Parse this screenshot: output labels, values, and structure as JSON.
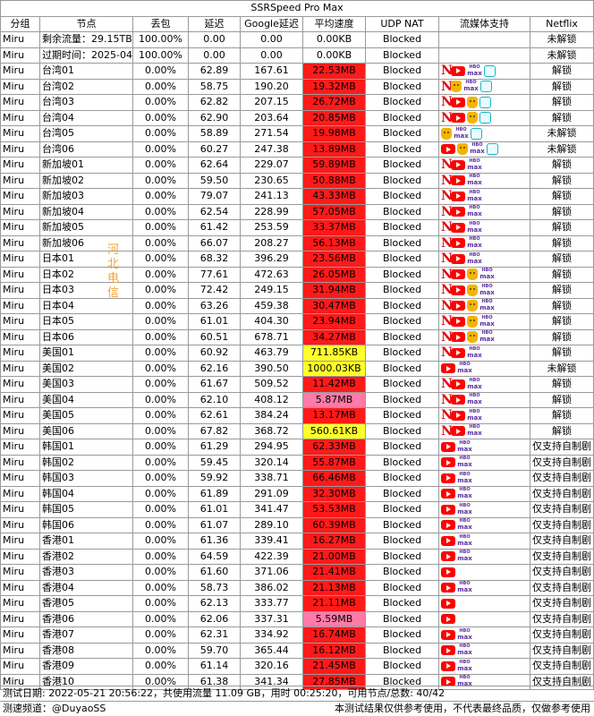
{
  "title": "SSRSpeed Pro Max",
  "watermark": "河北电信",
  "colors": {
    "red": "#ff1a1a",
    "yellow": "#ffff2a",
    "pink": "#ff7aa8"
  },
  "headers": [
    "分组",
    "节点",
    "丢包",
    "延迟",
    "Google延迟",
    "平均速度",
    "UDP NAT",
    "流媒体支持",
    "Netflix"
  ],
  "info_rows": [
    {
      "group": "Miru",
      "node": "剩余流量：29.15TB",
      "loss": "100.00%",
      "ping": "0.00",
      "google": "0.00",
      "speed": "0.00KB",
      "udp": "Blocked",
      "media": [],
      "netflix": "未解锁"
    },
    {
      "group": "Miru",
      "node": "过期时间：2025-04-07",
      "loss": "100.00%",
      "ping": "0.00",
      "google": "0.00",
      "speed": "0.00KB",
      "udp": "Blocked",
      "media": [],
      "netflix": "未解锁"
    }
  ],
  "rows": [
    {
      "group": "Miru",
      "node": "台湾01",
      "loss": "0.00%",
      "ping": "62.89",
      "google": "167.61",
      "speed": "22.53MB",
      "level": "red",
      "udp": "Blocked",
      "media": [
        "netflix-icon",
        "youtube-icon",
        "hbo-max-icon",
        "bilibili-tv-icon"
      ],
      "netflix": "解锁"
    },
    {
      "group": "Miru",
      "node": "台湾02",
      "loss": "0.00%",
      "ping": "58.75",
      "google": "190.20",
      "speed": "19.32MB",
      "level": "red",
      "udp": "Blocked",
      "media": [
        "netflix-icon",
        "bahamut-icon",
        "hbo-max-icon",
        "bilibili-tv-icon"
      ],
      "netflix": "解锁"
    },
    {
      "group": "Miru",
      "node": "台湾03",
      "loss": "0.00%",
      "ping": "62.82",
      "google": "207.15",
      "speed": "26.72MB",
      "level": "red",
      "udp": "Blocked",
      "media": [
        "netflix-icon",
        "youtube-icon",
        "bahamut-icon",
        "bilibili-tv-icon"
      ],
      "netflix": "解锁"
    },
    {
      "group": "Miru",
      "node": "台湾04",
      "loss": "0.00%",
      "ping": "62.90",
      "google": "203.64",
      "speed": "20.85MB",
      "level": "red",
      "udp": "Blocked",
      "media": [
        "netflix-icon",
        "youtube-icon",
        "bahamut-icon",
        "bilibili-tv-icon"
      ],
      "netflix": "解锁"
    },
    {
      "group": "Miru",
      "node": "台湾05",
      "loss": "0.00%",
      "ping": "58.89",
      "google": "271.54",
      "speed": "19.98MB",
      "level": "red",
      "udp": "Blocked",
      "media": [
        "bahamut-icon",
        "hbo-max-icon",
        "bilibili-tv-icon"
      ],
      "netflix": "未解锁"
    },
    {
      "group": "Miru",
      "node": "台湾06",
      "loss": "0.00%",
      "ping": "60.27",
      "google": "247.38",
      "speed": "13.89MB",
      "level": "red",
      "udp": "Blocked",
      "media": [
        "youtube-icon",
        "bahamut-icon",
        "hbo-max-icon",
        "bilibili-tv-icon"
      ],
      "netflix": "未解锁"
    },
    {
      "group": "Miru",
      "node": "新加坡01",
      "loss": "0.00%",
      "ping": "62.64",
      "google": "229.07",
      "speed": "59.89MB",
      "level": "red",
      "udp": "Blocked",
      "media": [
        "netflix-icon",
        "youtube-icon",
        "hbo-max-icon"
      ],
      "netflix": "解锁"
    },
    {
      "group": "Miru",
      "node": "新加坡02",
      "loss": "0.00%",
      "ping": "59.50",
      "google": "230.65",
      "speed": "50.88MB",
      "level": "red",
      "udp": "Blocked",
      "media": [
        "netflix-icon",
        "youtube-icon",
        "hbo-max-icon"
      ],
      "netflix": "解锁"
    },
    {
      "group": "Miru",
      "node": "新加坡03",
      "loss": "0.00%",
      "ping": "79.07",
      "google": "241.13",
      "speed": "43.33MB",
      "level": "red",
      "udp": "Blocked",
      "media": [
        "netflix-icon",
        "youtube-icon",
        "hbo-max-icon"
      ],
      "netflix": "解锁"
    },
    {
      "group": "Miru",
      "node": "新加坡04",
      "loss": "0.00%",
      "ping": "62.54",
      "google": "228.99",
      "speed": "57.05MB",
      "level": "red",
      "udp": "Blocked",
      "media": [
        "netflix-icon",
        "youtube-icon",
        "hbo-max-icon"
      ],
      "netflix": "解锁"
    },
    {
      "group": "Miru",
      "node": "新加坡05",
      "loss": "0.00%",
      "ping": "61.42",
      "google": "253.59",
      "speed": "33.37MB",
      "level": "red",
      "udp": "Blocked",
      "media": [
        "netflix-icon",
        "youtube-icon",
        "hbo-max-icon"
      ],
      "netflix": "解锁"
    },
    {
      "group": "Miru",
      "node": "新加坡06",
      "loss": "0.00%",
      "ping": "66.07",
      "google": "208.27",
      "speed": "56.13MB",
      "level": "red",
      "udp": "Blocked",
      "media": [
        "netflix-icon",
        "youtube-icon",
        "hbo-max-icon"
      ],
      "netflix": "解锁"
    },
    {
      "group": "Miru",
      "node": "日本01",
      "loss": "0.00%",
      "ping": "68.32",
      "google": "396.29",
      "speed": "23.56MB",
      "level": "red",
      "udp": "Blocked",
      "media": [
        "netflix-icon",
        "youtube-icon",
        "hbo-max-icon"
      ],
      "netflix": "解锁"
    },
    {
      "group": "Miru",
      "node": "日本02",
      "loss": "0.00%",
      "ping": "77.61",
      "google": "472.63",
      "speed": "26.05MB",
      "level": "red",
      "udp": "Blocked",
      "media": [
        "netflix-icon",
        "youtube-icon",
        "bahamut-icon",
        "hbo-max-icon"
      ],
      "netflix": "解锁"
    },
    {
      "group": "Miru",
      "node": "日本03",
      "loss": "0.00%",
      "ping": "72.42",
      "google": "249.15",
      "speed": "31.94MB",
      "level": "red",
      "udp": "Blocked",
      "media": [
        "netflix-icon",
        "youtube-icon",
        "bahamut-icon",
        "hbo-max-icon"
      ],
      "netflix": "解锁"
    },
    {
      "group": "Miru",
      "node": "日本04",
      "loss": "0.00%",
      "ping": "63.26",
      "google": "459.38",
      "speed": "30.47MB",
      "level": "red",
      "udp": "Blocked",
      "media": [
        "netflix-icon",
        "youtube-icon",
        "bahamut-icon",
        "hbo-max-icon"
      ],
      "netflix": "解锁"
    },
    {
      "group": "Miru",
      "node": "日本05",
      "loss": "0.00%",
      "ping": "61.01",
      "google": "404.30",
      "speed": "23.94MB",
      "level": "red",
      "udp": "Blocked",
      "media": [
        "netflix-icon",
        "youtube-icon",
        "bahamut-icon",
        "hbo-max-icon"
      ],
      "netflix": "解锁"
    },
    {
      "group": "Miru",
      "node": "日本06",
      "loss": "0.00%",
      "ping": "60.51",
      "google": "678.71",
      "speed": "34.27MB",
      "level": "red",
      "udp": "Blocked",
      "media": [
        "netflix-icon",
        "youtube-icon",
        "bahamut-icon",
        "hbo-max-icon"
      ],
      "netflix": "解锁"
    },
    {
      "group": "Miru",
      "node": "美国01",
      "loss": "0.00%",
      "ping": "60.92",
      "google": "463.79",
      "speed": "711.85KB",
      "level": "yellow",
      "udp": "Blocked",
      "media": [
        "netflix-icon",
        "youtube-icon",
        "hbo-max-icon"
      ],
      "netflix": "解锁"
    },
    {
      "group": "Miru",
      "node": "美国02",
      "loss": "0.00%",
      "ping": "62.16",
      "google": "390.50",
      "speed": "1000.03KB",
      "level": "yellow",
      "udp": "Blocked",
      "media": [
        "youtube-icon",
        "hbo-max-icon"
      ],
      "netflix": "未解锁"
    },
    {
      "group": "Miru",
      "node": "美国03",
      "loss": "0.00%",
      "ping": "61.67",
      "google": "509.52",
      "speed": "11.42MB",
      "level": "red",
      "udp": "Blocked",
      "media": [
        "netflix-icon",
        "youtube-icon",
        "hbo-max-icon"
      ],
      "netflix": "解锁"
    },
    {
      "group": "Miru",
      "node": "美国04",
      "loss": "0.00%",
      "ping": "62.10",
      "google": "408.12",
      "speed": "5.87MB",
      "level": "pink",
      "udp": "Blocked",
      "media": [
        "netflix-icon",
        "youtube-icon",
        "hbo-max-icon"
      ],
      "netflix": "解锁"
    },
    {
      "group": "Miru",
      "node": "美国05",
      "loss": "0.00%",
      "ping": "62.61",
      "google": "384.24",
      "speed": "13.17MB",
      "level": "red",
      "udp": "Blocked",
      "media": [
        "netflix-icon",
        "youtube-icon",
        "hbo-max-icon"
      ],
      "netflix": "解锁"
    },
    {
      "group": "Miru",
      "node": "美国06",
      "loss": "0.00%",
      "ping": "67.82",
      "google": "368.72",
      "speed": "560.61KB",
      "level": "yellow",
      "udp": "Blocked",
      "media": [
        "netflix-icon",
        "youtube-icon",
        "hbo-max-icon"
      ],
      "netflix": "解锁"
    },
    {
      "group": "Miru",
      "node": "韩国01",
      "loss": "0.00%",
      "ping": "61.29",
      "google": "294.95",
      "speed": "62.33MB",
      "level": "red",
      "udp": "Blocked",
      "media": [
        "youtube-icon",
        "hbo-max-icon"
      ],
      "netflix": "仅支持自制剧"
    },
    {
      "group": "Miru",
      "node": "韩国02",
      "loss": "0.00%",
      "ping": "59.45",
      "google": "320.14",
      "speed": "55.87MB",
      "level": "red",
      "udp": "Blocked",
      "media": [
        "youtube-icon",
        "hbo-max-icon"
      ],
      "netflix": "仅支持自制剧"
    },
    {
      "group": "Miru",
      "node": "韩国03",
      "loss": "0.00%",
      "ping": "59.92",
      "google": "338.71",
      "speed": "66.46MB",
      "level": "red",
      "udp": "Blocked",
      "media": [
        "youtube-icon",
        "hbo-max-icon"
      ],
      "netflix": "仅支持自制剧"
    },
    {
      "group": "Miru",
      "node": "韩国04",
      "loss": "0.00%",
      "ping": "61.89",
      "google": "291.09",
      "speed": "32.30MB",
      "level": "red",
      "udp": "Blocked",
      "media": [
        "youtube-icon",
        "hbo-max-icon"
      ],
      "netflix": "仅支持自制剧"
    },
    {
      "group": "Miru",
      "node": "韩国05",
      "loss": "0.00%",
      "ping": "61.01",
      "google": "341.47",
      "speed": "53.53MB",
      "level": "red",
      "udp": "Blocked",
      "media": [
        "youtube-icon",
        "hbo-max-icon"
      ],
      "netflix": "仅支持自制剧"
    },
    {
      "group": "Miru",
      "node": "韩国06",
      "loss": "0.00%",
      "ping": "61.07",
      "google": "289.10",
      "speed": "60.39MB",
      "level": "red",
      "udp": "Blocked",
      "media": [
        "youtube-icon",
        "hbo-max-icon"
      ],
      "netflix": "仅支持自制剧"
    },
    {
      "group": "Miru",
      "node": "香港01",
      "loss": "0.00%",
      "ping": "61.36",
      "google": "339.41",
      "speed": "16.27MB",
      "level": "red",
      "udp": "Blocked",
      "media": [
        "youtube-icon",
        "hbo-max-icon"
      ],
      "netflix": "仅支持自制剧"
    },
    {
      "group": "Miru",
      "node": "香港02",
      "loss": "0.00%",
      "ping": "64.59",
      "google": "422.39",
      "speed": "21.00MB",
      "level": "red",
      "udp": "Blocked",
      "media": [
        "youtube-icon",
        "hbo-max-icon"
      ],
      "netflix": "仅支持自制剧"
    },
    {
      "group": "Miru",
      "node": "香港03",
      "loss": "0.00%",
      "ping": "61.60",
      "google": "371.06",
      "speed": "21.41MB",
      "level": "red",
      "udp": "Blocked",
      "media": [
        "youtube-icon"
      ],
      "netflix": "仅支持自制剧"
    },
    {
      "group": "Miru",
      "node": "香港04",
      "loss": "0.00%",
      "ping": "58.73",
      "google": "386.02",
      "speed": "21.13MB",
      "level": "red",
      "udp": "Blocked",
      "media": [
        "youtube-icon",
        "hbo-max-icon"
      ],
      "netflix": "仅支持自制剧"
    },
    {
      "group": "Miru",
      "node": "香港05",
      "loss": "0.00%",
      "ping": "62.13",
      "google": "333.77",
      "speed": "21.11MB",
      "level": "red",
      "udp": "Blocked",
      "media": [
        "youtube-icon"
      ],
      "netflix": "仅支持自制剧"
    },
    {
      "group": "Miru",
      "node": "香港06",
      "loss": "0.00%",
      "ping": "62.06",
      "google": "337.31",
      "speed": "5.59MB",
      "level": "pink",
      "udp": "Blocked",
      "media": [
        "youtube-icon"
      ],
      "netflix": "仅支持自制剧"
    },
    {
      "group": "Miru",
      "node": "香港07",
      "loss": "0.00%",
      "ping": "62.31",
      "google": "334.92",
      "speed": "16.74MB",
      "level": "red",
      "udp": "Blocked",
      "media": [
        "youtube-icon",
        "hbo-max-icon"
      ],
      "netflix": "仅支持自制剧"
    },
    {
      "group": "Miru",
      "node": "香港08",
      "loss": "0.00%",
      "ping": "59.70",
      "google": "365.44",
      "speed": "16.12MB",
      "level": "red",
      "udp": "Blocked",
      "media": [
        "youtube-icon",
        "hbo-max-icon"
      ],
      "netflix": "仅支持自制剧"
    },
    {
      "group": "Miru",
      "node": "香港09",
      "loss": "0.00%",
      "ping": "61.14",
      "google": "320.16",
      "speed": "21.45MB",
      "level": "red",
      "udp": "Blocked",
      "media": [
        "youtube-icon",
        "hbo-max-icon"
      ],
      "netflix": "仅支持自制剧"
    },
    {
      "group": "Miru",
      "node": "香港10",
      "loss": "0.00%",
      "ping": "61.38",
      "google": "341.34",
      "speed": "27.85MB",
      "level": "red",
      "udp": "Blocked",
      "media": [
        "youtube-icon",
        "hbo-max-icon"
      ],
      "netflix": "仅支持自制剧"
    }
  ],
  "footer": {
    "summary": "测试日期: 2022-05-21 20:56:22，共使用流量 11.09 GB，用时 00:25:20，可用节点/总数: 40/42",
    "channel": "测速频道：@DuyaoSS",
    "disclaimer": "本测试结果仅供参考使用，不代表最终品质，仅做参考使用"
  }
}
